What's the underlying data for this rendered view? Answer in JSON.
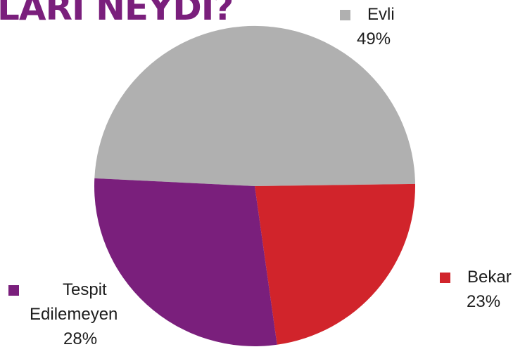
{
  "title": "LARI NEYDİ?",
  "chart_data": {
    "type": "pie",
    "title": "LARI NEYDİ?",
    "slices": [
      {
        "label": "Evli",
        "value": 49,
        "pct_label": "49%",
        "color": "#b0b0b0"
      },
      {
        "label": "Bekar",
        "value": 23,
        "pct_label": "23%",
        "color": "#d1242b"
      },
      {
        "label": "Tespit Edilemeyen",
        "label_line1": "Tespit",
        "label_line2": "Edilemeyen",
        "value": 28,
        "pct_label": "28%",
        "color": "#7a1f7c"
      }
    ]
  }
}
